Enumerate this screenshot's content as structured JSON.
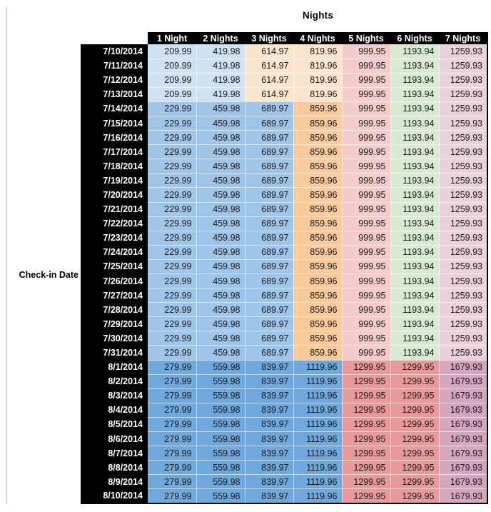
{
  "palette": {
    "light_blue": "#CFE2F3",
    "medium_blue": "#9FC5E8",
    "dark_blue": "#6FA8DC",
    "light_orange": "#FCE5CD",
    "medium_orange": "#F9CB9C",
    "light_red": "#F4CCCC",
    "salmon_red": "#EA9999",
    "light_green": "#D9EAD3",
    "light_magenta": "#EAD1DC",
    "medium_magenta": "#D5A6BD",
    "header_bg": "#000000",
    "header_text": "#FFFFFF",
    "cell_text": "#1A1A1A",
    "left_rule": "#D9D9D9"
  },
  "chart_data": {
    "type": "table",
    "title": "Nights",
    "row_axis_label": "Check-in Date",
    "columns": [
      "1 Night",
      "2 Nights",
      "3 Nights",
      "4 Nights",
      "5 Nights",
      "6 Nights",
      "7 Nights"
    ],
    "bands": {
      "a": [
        "light_blue",
        "light_blue",
        "light_orange",
        "light_orange",
        "light_red",
        "light_green",
        "light_magenta"
      ],
      "b": [
        "medium_blue",
        "medium_blue",
        "medium_blue",
        "medium_orange",
        "light_red",
        "light_green",
        "light_magenta"
      ],
      "c": [
        "dark_blue",
        "dark_blue",
        "dark_blue",
        "dark_blue",
        "salmon_red",
        "salmon_red",
        "medium_magenta"
      ]
    },
    "rows": [
      {
        "date": "7/10/2014",
        "band": "a",
        "values": [
          209.99,
          419.98,
          614.97,
          819.96,
          999.95,
          1193.94,
          1259.93
        ]
      },
      {
        "date": "7/11/2014",
        "band": "a",
        "values": [
          209.99,
          419.98,
          614.97,
          819.96,
          999.95,
          1193.94,
          1259.93
        ]
      },
      {
        "date": "7/12/2014",
        "band": "a",
        "values": [
          209.99,
          419.98,
          614.97,
          819.96,
          999.95,
          1193.94,
          1259.93
        ]
      },
      {
        "date": "7/13/2014",
        "band": "a",
        "values": [
          209.99,
          419.98,
          614.97,
          819.96,
          999.95,
          1193.94,
          1259.93
        ]
      },
      {
        "date": "7/14/2014",
        "band": "b",
        "values": [
          229.99,
          459.98,
          689.97,
          859.96,
          999.95,
          1193.94,
          1259.93
        ]
      },
      {
        "date": "7/15/2014",
        "band": "b",
        "values": [
          229.99,
          459.98,
          689.97,
          859.96,
          999.95,
          1193.94,
          1259.93
        ]
      },
      {
        "date": "7/16/2014",
        "band": "b",
        "values": [
          229.99,
          459.98,
          689.97,
          859.96,
          999.95,
          1193.94,
          1259.93
        ]
      },
      {
        "date": "7/17/2014",
        "band": "b",
        "values": [
          229.99,
          459.98,
          689.97,
          859.96,
          999.95,
          1193.94,
          1259.93
        ]
      },
      {
        "date": "7/18/2014",
        "band": "b",
        "values": [
          229.99,
          459.98,
          689.97,
          859.96,
          999.95,
          1193.94,
          1259.93
        ]
      },
      {
        "date": "7/19/2014",
        "band": "b",
        "values": [
          229.99,
          459.98,
          689.97,
          859.96,
          999.95,
          1193.94,
          1259.93
        ]
      },
      {
        "date": "7/20/2014",
        "band": "b",
        "values": [
          229.99,
          459.98,
          689.97,
          859.96,
          999.95,
          1193.94,
          1259.93
        ]
      },
      {
        "date": "7/21/2014",
        "band": "b",
        "values": [
          229.99,
          459.98,
          689.97,
          859.96,
          999.95,
          1193.94,
          1259.93
        ]
      },
      {
        "date": "7/22/2014",
        "band": "b",
        "values": [
          229.99,
          459.98,
          689.97,
          859.96,
          999.95,
          1193.94,
          1259.93
        ]
      },
      {
        "date": "7/23/2014",
        "band": "b",
        "values": [
          229.99,
          459.98,
          689.97,
          859.96,
          999.95,
          1193.94,
          1259.93
        ]
      },
      {
        "date": "7/24/2014",
        "band": "b",
        "values": [
          229.99,
          459.98,
          689.97,
          859.96,
          999.95,
          1193.94,
          1259.93
        ]
      },
      {
        "date": "7/25/2014",
        "band": "b",
        "values": [
          229.99,
          459.98,
          689.97,
          859.96,
          999.95,
          1193.94,
          1259.93
        ]
      },
      {
        "date": "7/26/2014",
        "band": "b",
        "values": [
          229.99,
          459.98,
          689.97,
          859.96,
          999.95,
          1193.94,
          1259.93
        ]
      },
      {
        "date": "7/27/2014",
        "band": "b",
        "values": [
          229.99,
          459.98,
          689.97,
          859.96,
          999.95,
          1193.94,
          1259.93
        ]
      },
      {
        "date": "7/28/2014",
        "band": "b",
        "values": [
          229.99,
          459.98,
          689.97,
          859.96,
          999.95,
          1193.94,
          1259.93
        ]
      },
      {
        "date": "7/29/2014",
        "band": "b",
        "values": [
          229.99,
          459.98,
          689.97,
          859.96,
          999.95,
          1193.94,
          1259.93
        ]
      },
      {
        "date": "7/30/2014",
        "band": "b",
        "values": [
          229.99,
          459.98,
          689.97,
          859.96,
          999.95,
          1193.94,
          1259.93
        ]
      },
      {
        "date": "7/31/2014",
        "band": "b",
        "values": [
          229.99,
          459.98,
          689.97,
          859.96,
          999.95,
          1193.94,
          1259.93
        ]
      },
      {
        "date": "8/1/2014",
        "band": "c",
        "values": [
          279.99,
          559.98,
          839.97,
          1119.96,
          1299.95,
          1299.95,
          1679.93
        ]
      },
      {
        "date": "8/2/2014",
        "band": "c",
        "values": [
          279.99,
          559.98,
          839.97,
          1119.96,
          1299.95,
          1299.95,
          1679.93
        ]
      },
      {
        "date": "8/3/2014",
        "band": "c",
        "values": [
          279.99,
          559.98,
          839.97,
          1119.96,
          1299.95,
          1299.95,
          1679.93
        ]
      },
      {
        "date": "8/4/2014",
        "band": "c",
        "values": [
          279.99,
          559.98,
          839.97,
          1119.96,
          1299.95,
          1299.95,
          1679.93
        ]
      },
      {
        "date": "8/5/2014",
        "band": "c",
        "values": [
          279.99,
          559.98,
          839.97,
          1119.96,
          1299.95,
          1299.95,
          1679.93
        ]
      },
      {
        "date": "8/6/2014",
        "band": "c",
        "values": [
          279.99,
          559.98,
          839.97,
          1119.96,
          1299.95,
          1299.95,
          1679.93
        ]
      },
      {
        "date": "8/7/2014",
        "band": "c",
        "values": [
          279.99,
          559.98,
          839.97,
          1119.96,
          1299.95,
          1299.95,
          1679.93
        ]
      },
      {
        "date": "8/8/2014",
        "band": "c",
        "values": [
          279.99,
          559.98,
          839.97,
          1119.96,
          1299.95,
          1299.95,
          1679.93
        ]
      },
      {
        "date": "8/9/2014",
        "band": "c",
        "values": [
          279.99,
          559.98,
          839.97,
          1119.96,
          1299.95,
          1299.95,
          1679.93
        ]
      },
      {
        "date": "8/10/2014",
        "band": "c",
        "values": [
          279.99,
          559.98,
          839.97,
          1119.96,
          1299.95,
          1299.95,
          1679.93
        ]
      }
    ]
  }
}
